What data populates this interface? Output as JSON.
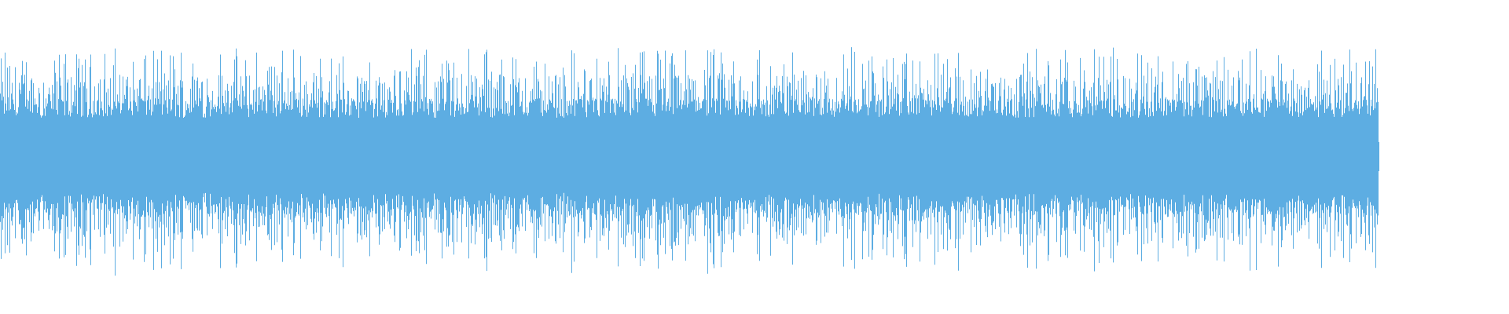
{
  "waveform": {
    "color": "#5dade2",
    "background": "#ffffff",
    "progress": 1.0
  }
}
